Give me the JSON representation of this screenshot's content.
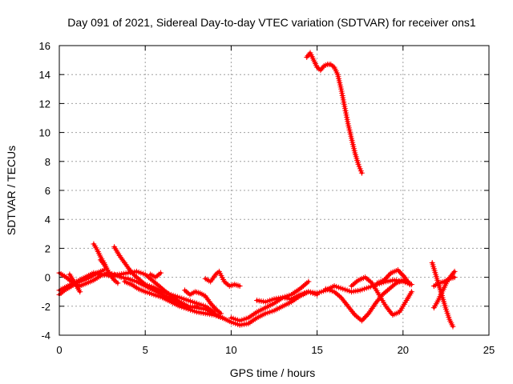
{
  "chart_data": {
    "type": "scatter",
    "title": "Day 091 of 2021, Sidereal Day-to-day VTEC variation (SDTVAR) for receiver ons1",
    "xlabel": "GPS time / hours",
    "ylabel": "SDTVAR / TECUs",
    "xlim": [
      0,
      25
    ],
    "ylim": [
      -4,
      16
    ],
    "xticks": [
      0,
      5,
      10,
      15,
      20,
      25
    ],
    "yticks": [
      -4,
      -2,
      0,
      2,
      4,
      6,
      8,
      10,
      12,
      14,
      16
    ],
    "grid": true,
    "marker": "+",
    "color": "#ff0000",
    "series": [
      {
        "name": "trace-1",
        "x": [
          0.0,
          0.5,
          1.0,
          1.5,
          2.0,
          2.5,
          3.0,
          3.5,
          4.0,
          4.5,
          5.0,
          5.5,
          6.0,
          6.5,
          7.0,
          7.5,
          8.0,
          8.5,
          9.0,
          9.5,
          10.0,
          10.5,
          11.0,
          11.5,
          12.0,
          12.5,
          13.0,
          13.5,
          14.0,
          14.5,
          15.0,
          15.5,
          16.0,
          16.5,
          17.0,
          17.5,
          18.0,
          18.5,
          19.0,
          19.5,
          20.0,
          20.5
        ],
        "y": [
          -0.9,
          -0.6,
          -0.3,
          0.0,
          0.3,
          0.2,
          0.1,
          0.2,
          0.3,
          0.4,
          0.2,
          -0.3,
          -0.8,
          -1.3,
          -1.7,
          -2.0,
          -2.1,
          -2.2,
          -2.5,
          -2.8,
          -3.1,
          -3.3,
          -3.2,
          -2.8,
          -2.5,
          -2.3,
          -2.0,
          -1.7,
          -1.3,
          -1.0,
          -1.1,
          -0.9,
          -0.6,
          -0.8,
          -1.0,
          -0.9,
          -0.7,
          -0.5,
          -0.3,
          -0.2,
          -0.3,
          -0.5
        ]
      },
      {
        "name": "trace-2",
        "x": [
          0.0,
          0.4,
          0.8,
          1.2,
          1.6,
          2.0,
          2.4,
          2.8,
          3.2,
          3.6,
          4.0,
          4.5,
          5.0,
          5.5,
          6.0,
          6.5,
          7.0,
          7.5,
          8.0
        ],
        "y": [
          0.3,
          0.0,
          -0.4,
          -0.6,
          -0.4,
          -0.2,
          0.1,
          0.3,
          0.2,
          0.0,
          -0.1,
          -0.3,
          -0.6,
          -0.9,
          -1.2,
          -1.5,
          -1.8,
          -2.1,
          -2.0
        ]
      },
      {
        "name": "trace-3",
        "x": [
          0.0,
          0.3,
          0.6,
          1.0,
          1.4,
          1.8,
          2.2,
          2.6
        ],
        "y": [
          -1.2,
          -0.9,
          -0.7,
          -0.4,
          -0.2,
          0.0,
          0.3,
          0.5
        ]
      },
      {
        "name": "trace-4",
        "x": [
          0.6,
          0.9,
          1.2
        ],
        "y": [
          0.2,
          -0.4,
          -1.0
        ]
      },
      {
        "name": "trace-5",
        "x": [
          2.0,
          2.2,
          2.4,
          2.6,
          2.8,
          3.0,
          3.2,
          3.4
        ],
        "y": [
          2.3,
          1.9,
          1.4,
          1.0,
          0.5,
          0.1,
          -0.2,
          -0.4
        ]
      },
      {
        "name": "trace-6",
        "x": [
          2.4,
          2.6,
          2.8
        ],
        "y": [
          1.2,
          0.9,
          0.5
        ]
      },
      {
        "name": "trace-7",
        "x": [
          3.2,
          3.5,
          3.8,
          4.1,
          4.4,
          4.7,
          5.0,
          5.5,
          6.0,
          6.5,
          7.0,
          7.5,
          8.0,
          8.5,
          9.0
        ],
        "y": [
          2.1,
          1.5,
          1.0,
          0.5,
          0.1,
          -0.2,
          -0.5,
          -0.7,
          -1.0,
          -1.2,
          -1.4,
          -1.6,
          -1.8,
          -2.0,
          -2.4
        ]
      },
      {
        "name": "trace-8",
        "x": [
          3.8,
          4.2,
          4.6,
          5.0,
          5.5,
          6.0,
          6.5,
          7.0,
          7.5,
          8.0,
          8.5,
          9.0,
          9.5
        ],
        "y": [
          -0.3,
          -0.5,
          -0.8,
          -1.0,
          -1.2,
          -1.4,
          -1.7,
          -2.0,
          -2.2,
          -2.4,
          -2.5,
          -2.6,
          -2.8
        ]
      },
      {
        "name": "trace-9",
        "x": [
          5.3,
          5.6,
          5.9
        ],
        "y": [
          0.2,
          0.0,
          0.3
        ]
      },
      {
        "name": "trace-10",
        "x": [
          7.3,
          7.6,
          7.9,
          8.2,
          8.5,
          8.8,
          9.1,
          9.4
        ],
        "y": [
          -0.9,
          -1.2,
          -1.0,
          -1.1,
          -1.3,
          -1.8,
          -2.2,
          -2.5
        ]
      },
      {
        "name": "trace-11",
        "x": [
          8.5,
          8.8,
          9.1,
          9.3,
          9.6,
          9.9,
          10.2,
          10.5
        ],
        "y": [
          -0.1,
          -0.3,
          0.2,
          0.4,
          -0.3,
          -0.6,
          -0.5,
          -0.6
        ]
      },
      {
        "name": "trace-12",
        "x": [
          10.0,
          10.5,
          11.0,
          11.5,
          12.0,
          12.5,
          13.0,
          13.5,
          14.0,
          14.5
        ],
        "y": [
          -2.8,
          -3.0,
          -2.8,
          -2.4,
          -2.1,
          -1.8,
          -1.4,
          -1.2,
          -0.8,
          -0.3
        ]
      },
      {
        "name": "trace-13",
        "x": [
          11.5,
          12.0,
          12.5,
          13.0,
          13.5,
          14.0,
          14.5,
          15.0
        ],
        "y": [
          -1.6,
          -1.7,
          -1.5,
          -1.4,
          -1.5,
          -1.2,
          -1.0,
          -1.2
        ]
      },
      {
        "name": "trace-14",
        "x": [
          14.4,
          14.6,
          14.8,
          15.0,
          15.2,
          15.4,
          15.6,
          15.8,
          16.0,
          16.2,
          16.4,
          16.6,
          16.8,
          17.0,
          17.2,
          17.4,
          17.6
        ],
        "y": [
          15.2,
          15.5,
          15.0,
          14.5,
          14.3,
          14.6,
          14.7,
          14.7,
          14.5,
          14.0,
          13.0,
          11.8,
          10.6,
          9.6,
          8.6,
          7.8,
          7.2
        ]
      },
      {
        "name": "trace-15",
        "x": [
          15.5,
          16.0,
          16.4,
          16.8,
          17.2,
          17.6,
          18.0,
          18.4,
          18.8,
          19.2,
          19.6,
          20.0,
          20.3
        ],
        "y": [
          -0.8,
          -1.0,
          -1.4,
          -2.0,
          -2.6,
          -3.0,
          -2.5,
          -1.8,
          -1.2,
          -0.8,
          -0.4,
          -0.2,
          -0.3
        ]
      },
      {
        "name": "trace-16",
        "x": [
          17.0,
          17.4,
          17.8,
          18.2,
          18.6,
          19.0,
          19.4,
          19.8,
          20.2,
          20.5
        ],
        "y": [
          -0.6,
          -0.2,
          0.0,
          -0.4,
          -1.2,
          -2.0,
          -2.6,
          -2.4,
          -1.6,
          -1.0
        ]
      },
      {
        "name": "trace-17",
        "x": [
          18.5,
          18.9,
          19.3,
          19.7,
          20.1,
          20.4
        ],
        "y": [
          -0.4,
          -0.2,
          0.3,
          0.5,
          0.0,
          -0.5
        ]
      },
      {
        "name": "trace-18",
        "x": [
          21.7,
          21.9,
          22.1,
          22.3,
          22.5,
          22.7,
          22.9
        ],
        "y": [
          1.0,
          0.2,
          -0.6,
          -1.4,
          -2.2,
          -2.9,
          -3.4
        ]
      },
      {
        "name": "trace-19",
        "x": [
          21.8,
          22.0,
          22.2,
          22.4,
          22.6,
          22.8,
          23.0
        ],
        "y": [
          -2.1,
          -1.7,
          -1.2,
          -0.7,
          -0.2,
          0.1,
          0.4
        ]
      },
      {
        "name": "trace-20",
        "x": [
          21.8,
          22.1,
          22.4,
          22.7,
          23.0
        ],
        "y": [
          -0.6,
          -0.4,
          -0.3,
          -0.1,
          0.0
        ]
      }
    ]
  }
}
